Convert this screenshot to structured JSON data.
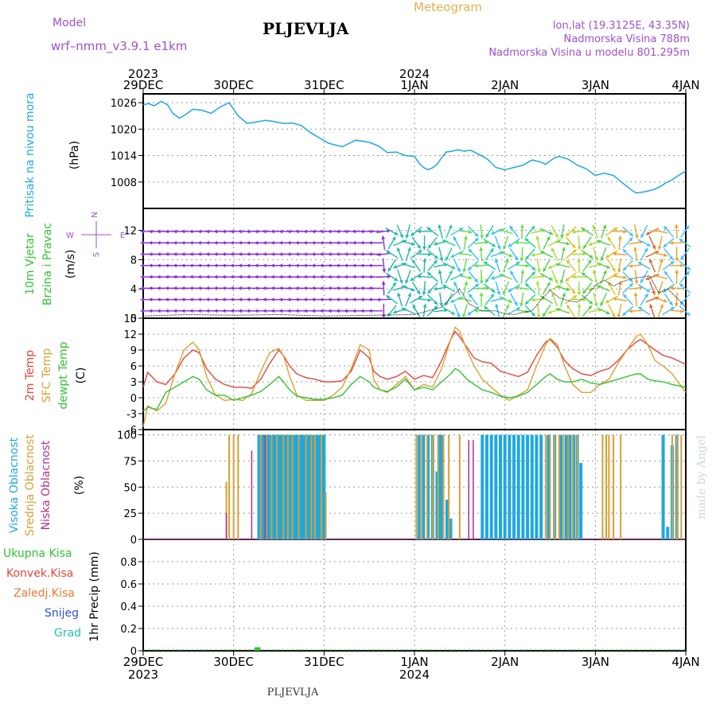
{
  "header": {
    "title": "PLJEVLJA",
    "app": "Meteogram",
    "model_label": "Model",
    "model_name": "wrf–nmm_v3.9.1  e1km",
    "lonlat": "lon,lat (19.3125E, 43.35N)",
    "elevation": "Nadmorska Visina 788m",
    "model_elevation": "Nadmorska Visina u modelu 801.295m",
    "footer_title": "PLJEVLJA",
    "credit": "made by Angel"
  },
  "colors": {
    "pressure": "#1ea8e0",
    "t2m": "#e8453c",
    "sfc": "#d9a033",
    "dewpt": "#31c431",
    "high_cloud": "#1ea8e0",
    "mid_cloud": "#d9a033",
    "low_cloud": "#b0308a",
    "label_purple": "#a050d0",
    "label_orange": "#e0a040",
    "precip_total": "#31c431",
    "precip_conv": "#e8453c",
    "precip_frozen": "#f07830",
    "precip_snow": "#3050d0",
    "precip_graupel": "#20c0b0"
  },
  "time_axis": {
    "ticks": [
      {
        "day": "29DEC",
        "year": "2023"
      },
      {
        "day": "30DEC",
        "year": ""
      },
      {
        "day": "31DEC",
        "year": ""
      },
      {
        "day": "1JAN",
        "year": "2024"
      },
      {
        "day": "2JAN",
        "year": ""
      },
      {
        "day": "3JAN",
        "year": ""
      },
      {
        "day": "4JAN",
        "year": ""
      }
    ]
  },
  "panels": {
    "pressure": {
      "label_color": "Pritisak na nivou mora",
      "unit": "(hPa)"
    },
    "wind": {
      "label_color1": "10m Vjetar",
      "label_color2": "Brzina i Pravac",
      "unit": "(m/s)",
      "compass": {
        "n": "N",
        "s": "S",
        "e": "E",
        "w": "W"
      }
    },
    "temp": {
      "label_t2m": "2m Temp",
      "label_sfc": "SFC Temp",
      "label_dew": "dewpt Temp",
      "unit": "(C)"
    },
    "cloud": {
      "label_high": "Visoka Oblacnost",
      "label_mid": "Srednja Oblacnost",
      "label_low": "Niska Oblacnost",
      "unit": "(%)"
    },
    "precip": {
      "unit": "1hr Precip (mm)",
      "legend": [
        "Ukupna Kisa",
        "Konvek.Kisa",
        "Zaledj.Kisa",
        "Snijeg",
        "Grad"
      ]
    }
  },
  "chart_data": [
    {
      "type": "line",
      "name_key": "pressure",
      "ylabel": "(hPa)",
      "ylim": [
        1002,
        1028
      ],
      "yticks": [
        1008,
        1014,
        1020,
        1026
      ],
      "x_days": [
        0,
        0.06,
        0.12,
        0.2,
        0.27,
        0.33,
        0.4,
        0.46,
        0.55,
        0.65,
        0.75,
        0.85,
        0.95,
        1.05,
        1.15,
        1.25,
        1.35,
        1.42,
        1.5,
        1.55,
        1.65,
        1.75,
        1.85,
        1.95,
        2.05,
        2.2,
        2.35,
        2.5,
        2.6,
        2.7,
        2.8,
        2.9,
        3.0,
        3.05,
        3.1,
        3.15,
        3.2,
        3.25,
        3.3,
        3.35,
        3.42,
        3.48,
        3.55,
        3.62,
        3.7,
        3.8,
        3.9,
        4.0,
        4.1,
        4.2,
        4.3,
        4.4,
        4.45,
        4.5,
        4.55,
        4.6,
        4.7,
        4.8,
        4.9,
        5.0,
        5.1,
        5.2,
        5.3,
        5.4,
        5.45,
        5.55,
        5.65,
        5.72,
        5.78,
        5.85,
        5.92,
        6.0
      ],
      "values": [
        1025.5,
        1025.8,
        1025.3,
        1026.3,
        1025.5,
        1023.5,
        1022.5,
        1023.2,
        1024.5,
        1024.3,
        1023.6,
        1025.0,
        1026.0,
        1023.0,
        1021.3,
        1021.6,
        1022.0,
        1021.8,
        1021.5,
        1021.3,
        1021.4,
        1020.8,
        1019.2,
        1018.0,
        1016.8,
        1016.0,
        1017.5,
        1017.0,
        1016.2,
        1014.7,
        1014.8,
        1014.0,
        1013.8,
        1012.3,
        1011.3,
        1010.8,
        1011.2,
        1012.0,
        1013.5,
        1014.8,
        1015.0,
        1015.3,
        1015.0,
        1015.2,
        1014.4,
        1013.3,
        1011.3,
        1010.8,
        1011.3,
        1011.8,
        1013.0,
        1012.5,
        1012.0,
        1012.8,
        1013.5,
        1013.8,
        1013.2,
        1011.8,
        1011.0,
        1009.5,
        1010.0,
        1009.5,
        1007.8,
        1006.2,
        1005.5,
        1005.8,
        1006.3,
        1007.0,
        1007.8,
        1008.5,
        1009.5,
        1010.5
      ]
    },
    {
      "type": "line",
      "name_key": "wind",
      "ylabel": "(m/s)",
      "ylim": [
        0,
        15
      ],
      "yticks": [
        0,
        4,
        8,
        12
      ],
      "x_days": [
        0,
        0.5,
        1.0,
        1.5,
        2.0,
        2.5,
        3.0,
        3.3,
        3.5,
        3.6,
        3.75,
        3.9,
        4.0,
        4.1,
        4.2,
        4.3,
        4.4,
        4.5,
        4.6,
        4.7,
        4.8,
        4.9,
        5.0,
        5.1,
        5.2,
        5.3,
        5.4,
        5.5,
        5.6,
        5.7,
        5.8,
        5.9,
        6.0
      ],
      "values": [
        0.3,
        0.5,
        0.4,
        0.5,
        0.3,
        0.4,
        0.5,
        1.5,
        4.0,
        2.0,
        1.0,
        1.0,
        0.6,
        0.5,
        0.8,
        1.0,
        2.5,
        3.8,
        2.8,
        2.4,
        2.2,
        3.0,
        4.5,
        5.2,
        4.4,
        5.0,
        5.4,
        5.6,
        5.8,
        3.5,
        4.0,
        2.8,
        1.5
      ]
    },
    {
      "type": "line",
      "name_key": "temperature",
      "ylabel": "(C)",
      "ylim": [
        -6,
        15
      ],
      "yticks": [
        -6,
        -3,
        0,
        3,
        6,
        9,
        12,
        15
      ],
      "x_days": [
        0,
        0.05,
        0.15,
        0.25,
        0.35,
        0.45,
        0.55,
        0.62,
        0.7,
        0.8,
        0.9,
        1.0,
        1.1,
        1.2,
        1.3,
        1.4,
        1.5,
        1.55,
        1.62,
        1.7,
        1.8,
        1.9,
        2.0,
        2.1,
        2.2,
        2.3,
        2.4,
        2.5,
        2.55,
        2.62,
        2.7,
        2.8,
        2.9,
        3.0,
        3.1,
        3.2,
        3.3,
        3.4,
        3.45,
        3.5,
        3.58,
        3.66,
        3.75,
        3.85,
        3.95,
        4.05,
        4.15,
        4.25,
        4.35,
        4.45,
        4.5,
        4.58,
        4.66,
        4.75,
        4.85,
        4.95,
        5.05,
        5.15,
        5.25,
        5.35,
        5.45,
        5.5,
        5.58,
        5.66,
        5.75,
        5.85,
        6.0
      ],
      "series": [
        {
          "key": "t2m",
          "values": [
            2.0,
            4.8,
            3.0,
            2.5,
            4.5,
            7.5,
            9.0,
            8.5,
            5.5,
            3.5,
            2.5,
            2.0,
            2.0,
            1.8,
            3.5,
            6.5,
            9.0,
            8.0,
            6.0,
            4.5,
            3.8,
            3.5,
            3.0,
            3.0,
            3.2,
            5.0,
            9.0,
            7.5,
            5.0,
            4.0,
            3.5,
            4.0,
            5.0,
            3.5,
            4.2,
            3.8,
            7.0,
            11.0,
            12.5,
            11.5,
            9.5,
            7.5,
            6.8,
            6.5,
            5.0,
            4.5,
            4.0,
            4.8,
            8.0,
            10.5,
            11.0,
            9.5,
            7.0,
            5.5,
            4.5,
            4.2,
            5.0,
            5.5,
            7.0,
            9.0,
            10.5,
            11.0,
            10.0,
            9.0,
            8.0,
            7.5,
            6.3
          ]
        },
        {
          "key": "sfc",
          "values": [
            -5.5,
            -1.5,
            -2.5,
            -1.0,
            4.5,
            9.0,
            10.5,
            9.0,
            4.0,
            0.5,
            -0.5,
            -0.3,
            -0.5,
            0.8,
            5.0,
            8.5,
            9.3,
            8.0,
            4.0,
            0.5,
            -0.5,
            -0.5,
            -0.5,
            0.5,
            2.0,
            5.5,
            10.0,
            9.0,
            3.5,
            1.5,
            1.0,
            2.5,
            4.0,
            1.5,
            2.5,
            2.0,
            5.5,
            11.0,
            13.3,
            12.5,
            9.0,
            6.0,
            3.5,
            2.0,
            0.5,
            -0.5,
            0.5,
            1.5,
            6.0,
            10.0,
            11.2,
            10.0,
            6.0,
            2.5,
            1.0,
            1.0,
            2.5,
            3.5,
            6.5,
            9.0,
            11.5,
            12.0,
            10.0,
            7.0,
            6.0,
            4.5,
            1.0
          ]
        },
        {
          "key": "dewpt",
          "values": [
            -2.5,
            -1.8,
            -2.2,
            1.0,
            2.0,
            3.0,
            4.0,
            3.5,
            1.5,
            0.5,
            0.5,
            -0.5,
            0.0,
            0.5,
            1.2,
            2.5,
            4.0,
            3.0,
            1.5,
            0.3,
            0.0,
            -0.3,
            -0.3,
            0.0,
            0.5,
            2.5,
            4.0,
            3.0,
            2.0,
            1.5,
            1.2,
            2.0,
            3.5,
            1.5,
            2.0,
            1.5,
            3.0,
            4.5,
            5.5,
            5.0,
            3.5,
            2.5,
            1.5,
            1.0,
            0.3,
            0.0,
            0.3,
            1.0,
            2.5,
            4.0,
            4.5,
            3.5,
            3.0,
            3.0,
            3.5,
            2.8,
            2.5,
            3.0,
            3.5,
            4.0,
            4.5,
            4.5,
            3.5,
            3.2,
            3.0,
            2.5,
            2.0
          ]
        }
      ]
    },
    {
      "type": "bar",
      "name_key": "clouds",
      "ylabel": "(%)",
      "ylim": [
        0,
        105
      ],
      "yticks": [
        0,
        25,
        50,
        75,
        100
      ],
      "high": {
        "x_days": [
          1.28,
          1.31,
          1.34,
          1.37,
          1.4,
          1.43,
          1.46,
          1.49,
          1.52,
          1.55,
          1.58,
          1.61,
          1.64,
          1.67,
          1.7,
          1.73,
          1.76,
          1.79,
          1.82,
          1.85,
          1.88,
          1.91,
          1.94,
          1.97,
          2.0,
          3.05,
          3.1,
          3.15,
          3.2,
          3.25,
          3.28,
          3.31,
          3.36,
          3.4,
          3.75,
          3.8,
          3.85,
          3.9,
          3.95,
          4.0,
          4.05,
          4.1,
          4.15,
          4.2,
          4.25,
          4.3,
          4.35,
          4.4,
          4.48,
          4.55,
          4.62,
          4.68,
          4.72,
          4.76,
          4.8,
          4.84,
          5.75,
          5.8,
          5.85,
          5.9
        ],
        "values": [
          100,
          100,
          100,
          100,
          100,
          100,
          100,
          100,
          100,
          100,
          100,
          100,
          100,
          100,
          100,
          100,
          100,
          100,
          100,
          100,
          100,
          100,
          100,
          100,
          100,
          100,
          100,
          100,
          100,
          65,
          100,
          100,
          38,
          20,
          100,
          100,
          100,
          100,
          100,
          100,
          100,
          100,
          100,
          100,
          100,
          100,
          100,
          100,
          100,
          100,
          100,
          100,
          100,
          100,
          100,
          73,
          100,
          12,
          90,
          100
        ]
      },
      "mid": {
        "x_days": [
          0.92,
          0.95,
          1.0,
          1.05,
          1.3,
          1.36,
          1.42,
          1.48,
          1.55,
          1.6,
          1.65,
          1.72,
          1.8,
          1.86,
          1.9,
          1.97,
          2.02,
          3.02,
          3.08,
          3.14,
          3.2,
          3.26,
          3.32,
          3.38,
          3.5,
          4.45,
          4.5,
          4.55,
          4.6,
          4.65,
          4.7,
          4.75,
          4.8,
          5.08,
          5.12,
          5.15,
          5.2,
          5.28,
          5.85,
          5.9,
          5.95
        ],
        "values": [
          55,
          100,
          100,
          100,
          100,
          100,
          100,
          100,
          100,
          100,
          100,
          100,
          100,
          100,
          100,
          100,
          45,
          100,
          100,
          100,
          100,
          100,
          100,
          100,
          100,
          100,
          100,
          100,
          100,
          100,
          100,
          100,
          100,
          100,
          100,
          100,
          100,
          100,
          100,
          100,
          100
        ]
      },
      "low": {
        "x_days": [
          0.92,
          1.2,
          1.35,
          3.6,
          3.65
        ],
        "values": [
          25,
          85,
          100,
          95,
          95
        ]
      }
    },
    {
      "type": "bar",
      "name_key": "precipitation",
      "ylabel": "1hr Precip (mm)",
      "ylim": [
        0,
        1.0
      ],
      "yticks": [
        0,
        0.2,
        0.4,
        0.6,
        0.8
      ],
      "total": {
        "x_days": [
          1.25,
          1.28
        ],
        "values": [
          0.01,
          0.01
        ]
      }
    }
  ]
}
